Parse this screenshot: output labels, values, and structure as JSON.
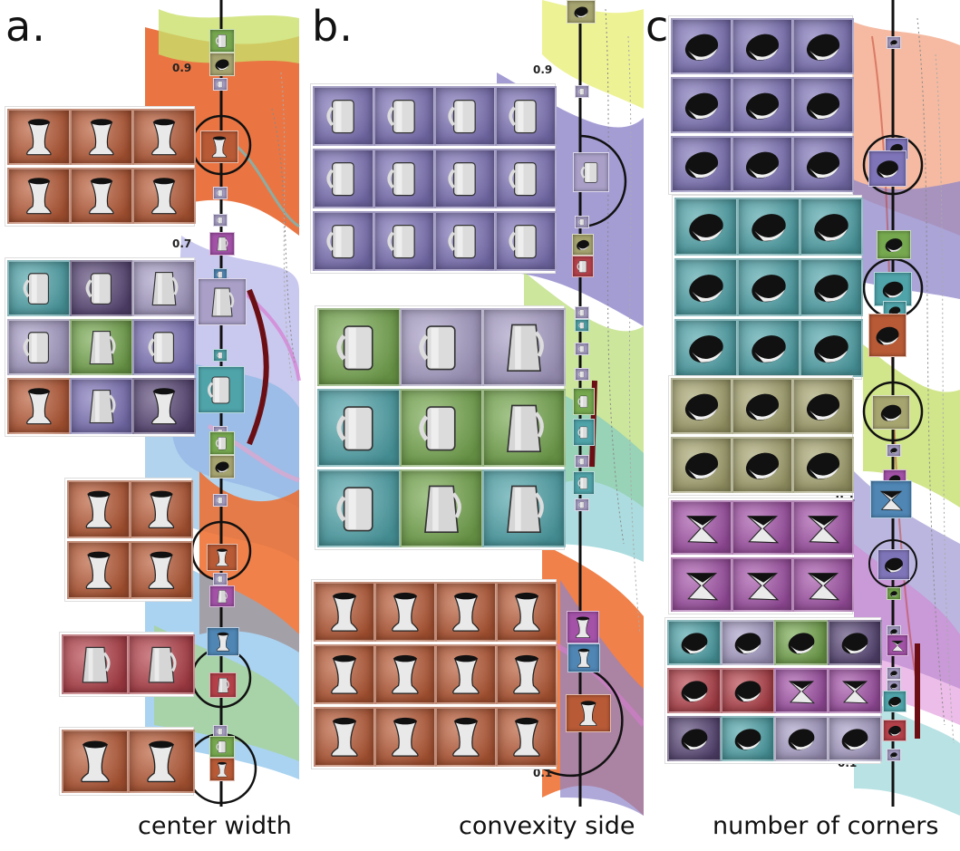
{
  "panels": [
    {
      "letter": "a.",
      "caption": "center width",
      "top_label": "0.9",
      "mid_label": "0.7",
      "bottom_label": ""
    },
    {
      "letter": "b.",
      "caption": "convexity side",
      "top_label": "0.9",
      "mid_label": "",
      "bottom_label": "0.1"
    },
    {
      "letter": "c.",
      "caption": "number of corners",
      "top_label": "",
      "mid_label": "0.1",
      "bottom_label": "0.1"
    }
  ],
  "colors": {
    "orange": "#b85a36",
    "purple": "#7e74b8",
    "lavender": "#a99fc7",
    "teal": "#4fa4aa",
    "green": "#76a84f",
    "olive": "#a6a46f",
    "magenta": "#a352a8",
    "red": "#b4414a",
    "blue": "#4f86b4",
    "darkpurple": "#5a4878",
    "axis": "#111111",
    "highlight_bar": "#6b0f14"
  },
  "icons": {
    "hourglass": "hourglass-shape-icon",
    "mug": "mug-shape-icon",
    "jug": "jug-shape-icon",
    "blob": "blob-shape-icon",
    "bowtie": "bowtie-shape-icon"
  }
}
